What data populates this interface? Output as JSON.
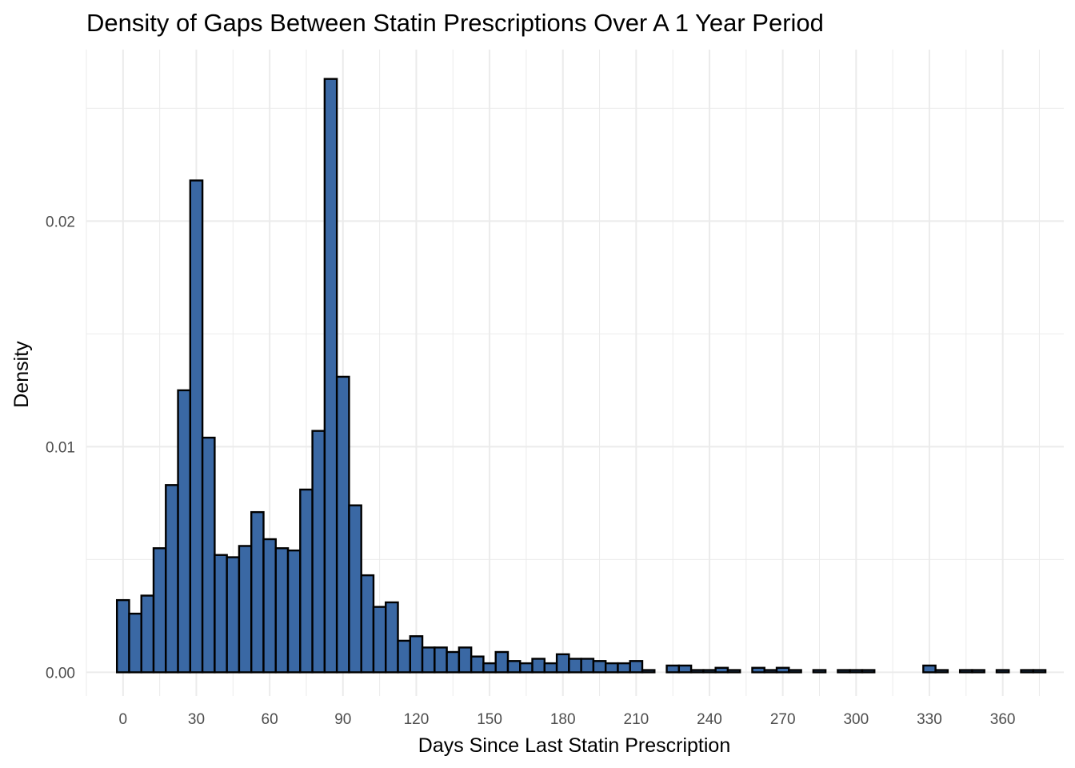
{
  "chart_data": {
    "type": "bar",
    "title": "Density of Gaps Between Statin Prescriptions Over A 1 Year Period",
    "xlabel": "Days Since Last Statin Prescription",
    "ylabel": "Density",
    "bin_width": 5,
    "x_range": [
      -15,
      385
    ],
    "y_range": [
      -0.00105,
      0.0276
    ],
    "x_ticks": [
      0,
      30,
      60,
      90,
      120,
      150,
      180,
      210,
      240,
      270,
      300,
      330,
      360
    ],
    "y_ticks": [
      0.0,
      0.01,
      0.02
    ],
    "y_tick_labels": [
      "0.00",
      "0.01",
      "0.02"
    ],
    "grid": true,
    "bar_color": "#3a68a4",
    "bin_centers": [
      0,
      5,
      10,
      15,
      20,
      25,
      30,
      35,
      40,
      45,
      50,
      55,
      60,
      65,
      70,
      75,
      80,
      85,
      90,
      95,
      100,
      105,
      110,
      115,
      120,
      125,
      130,
      135,
      140,
      145,
      150,
      155,
      160,
      165,
      170,
      175,
      180,
      185,
      190,
      195,
      200,
      205,
      210,
      215,
      220,
      225,
      230,
      235,
      240,
      245,
      250,
      255,
      260,
      265,
      270,
      275,
      280,
      285,
      290,
      295,
      300,
      305,
      310,
      315,
      320,
      325,
      330,
      335,
      340,
      345,
      350,
      355,
      360,
      365,
      370,
      375,
      380
    ],
    "values": [
      0.0032,
      0.0026,
      0.0034,
      0.0055,
      0.0083,
      0.0125,
      0.0218,
      0.0104,
      0.0052,
      0.0051,
      0.0056,
      0.0071,
      0.0059,
      0.0055,
      0.0054,
      0.0081,
      0.0107,
      0.0263,
      0.0131,
      0.0074,
      0.0043,
      0.0029,
      0.0031,
      0.0014,
      0.0016,
      0.0011,
      0.0011,
      0.0009,
      0.0011,
      0.0007,
      0.0004,
      0.0009,
      0.0005,
      0.0004,
      0.0006,
      0.0004,
      0.0008,
      0.0006,
      0.0006,
      0.0005,
      0.0004,
      0.0004,
      0.0005,
      0.0001,
      0.0,
      0.0003,
      0.0003,
      0.0001,
      0.0001,
      0.0002,
      0.0001,
      0.0,
      0.0002,
      0.0001,
      0.0002,
      0.0001,
      0.0,
      0.0001,
      0.0,
      0.0001,
      0.0001,
      0.0001,
      0.0,
      0.0,
      0.0,
      0.0,
      0.0003,
      0.0001,
      0.0,
      0.0001,
      0.0001,
      0.0,
      0.0001,
      0.0,
      0.0001,
      0.0001,
      0.0
    ]
  }
}
